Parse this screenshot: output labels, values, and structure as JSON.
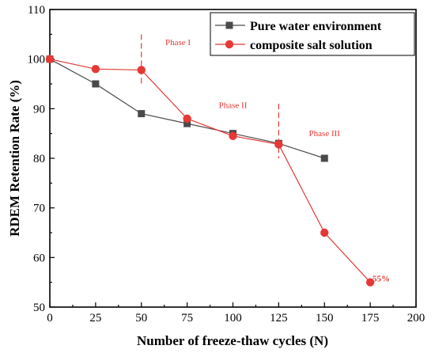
{
  "chart_data": {
    "type": "line",
    "xlabel": "Number of freeze-thaw cycles (N)",
    "ylabel": "RDEM Retention Rate (%)",
    "xlim": [
      0,
      200
    ],
    "ylim": [
      50,
      110
    ],
    "xticks": [
      0,
      25,
      50,
      75,
      100,
      125,
      150,
      175,
      200
    ],
    "yticks": [
      50,
      60,
      70,
      80,
      90,
      100,
      110
    ],
    "grid": false,
    "legend_position": "top-right",
    "series": [
      {
        "name": "Pure water environment",
        "marker": "square",
        "color": "#4a4a4a",
        "x": [
          0,
          25,
          50,
          75,
          100,
          125,
          150
        ],
        "y": [
          100,
          95,
          89,
          87,
          85,
          83,
          80
        ]
      },
      {
        "name": "composite salt solution",
        "marker": "circle",
        "color": "#e53935",
        "x": [
          0,
          25,
          50,
          75,
          100,
          125,
          150,
          175
        ],
        "y": [
          100,
          98,
          97.8,
          88,
          84.5,
          82.8,
          65,
          55
        ]
      }
    ],
    "phase_dividers": [
      {
        "x": 50,
        "y_from": 94.5,
        "y_to": 105
      },
      {
        "x": 125,
        "y_from": 80,
        "y_to": 91
      }
    ],
    "annotations": [
      {
        "text": "Phase I",
        "x": 70,
        "y": 102.8
      },
      {
        "text": "Phase II",
        "x": 100,
        "y": 90.1
      },
      {
        "text": "Phase III",
        "x": 150,
        "y": 84.5
      },
      {
        "text": "55%",
        "x": 181,
        "y": 55.2,
        "bold": true
      }
    ]
  }
}
